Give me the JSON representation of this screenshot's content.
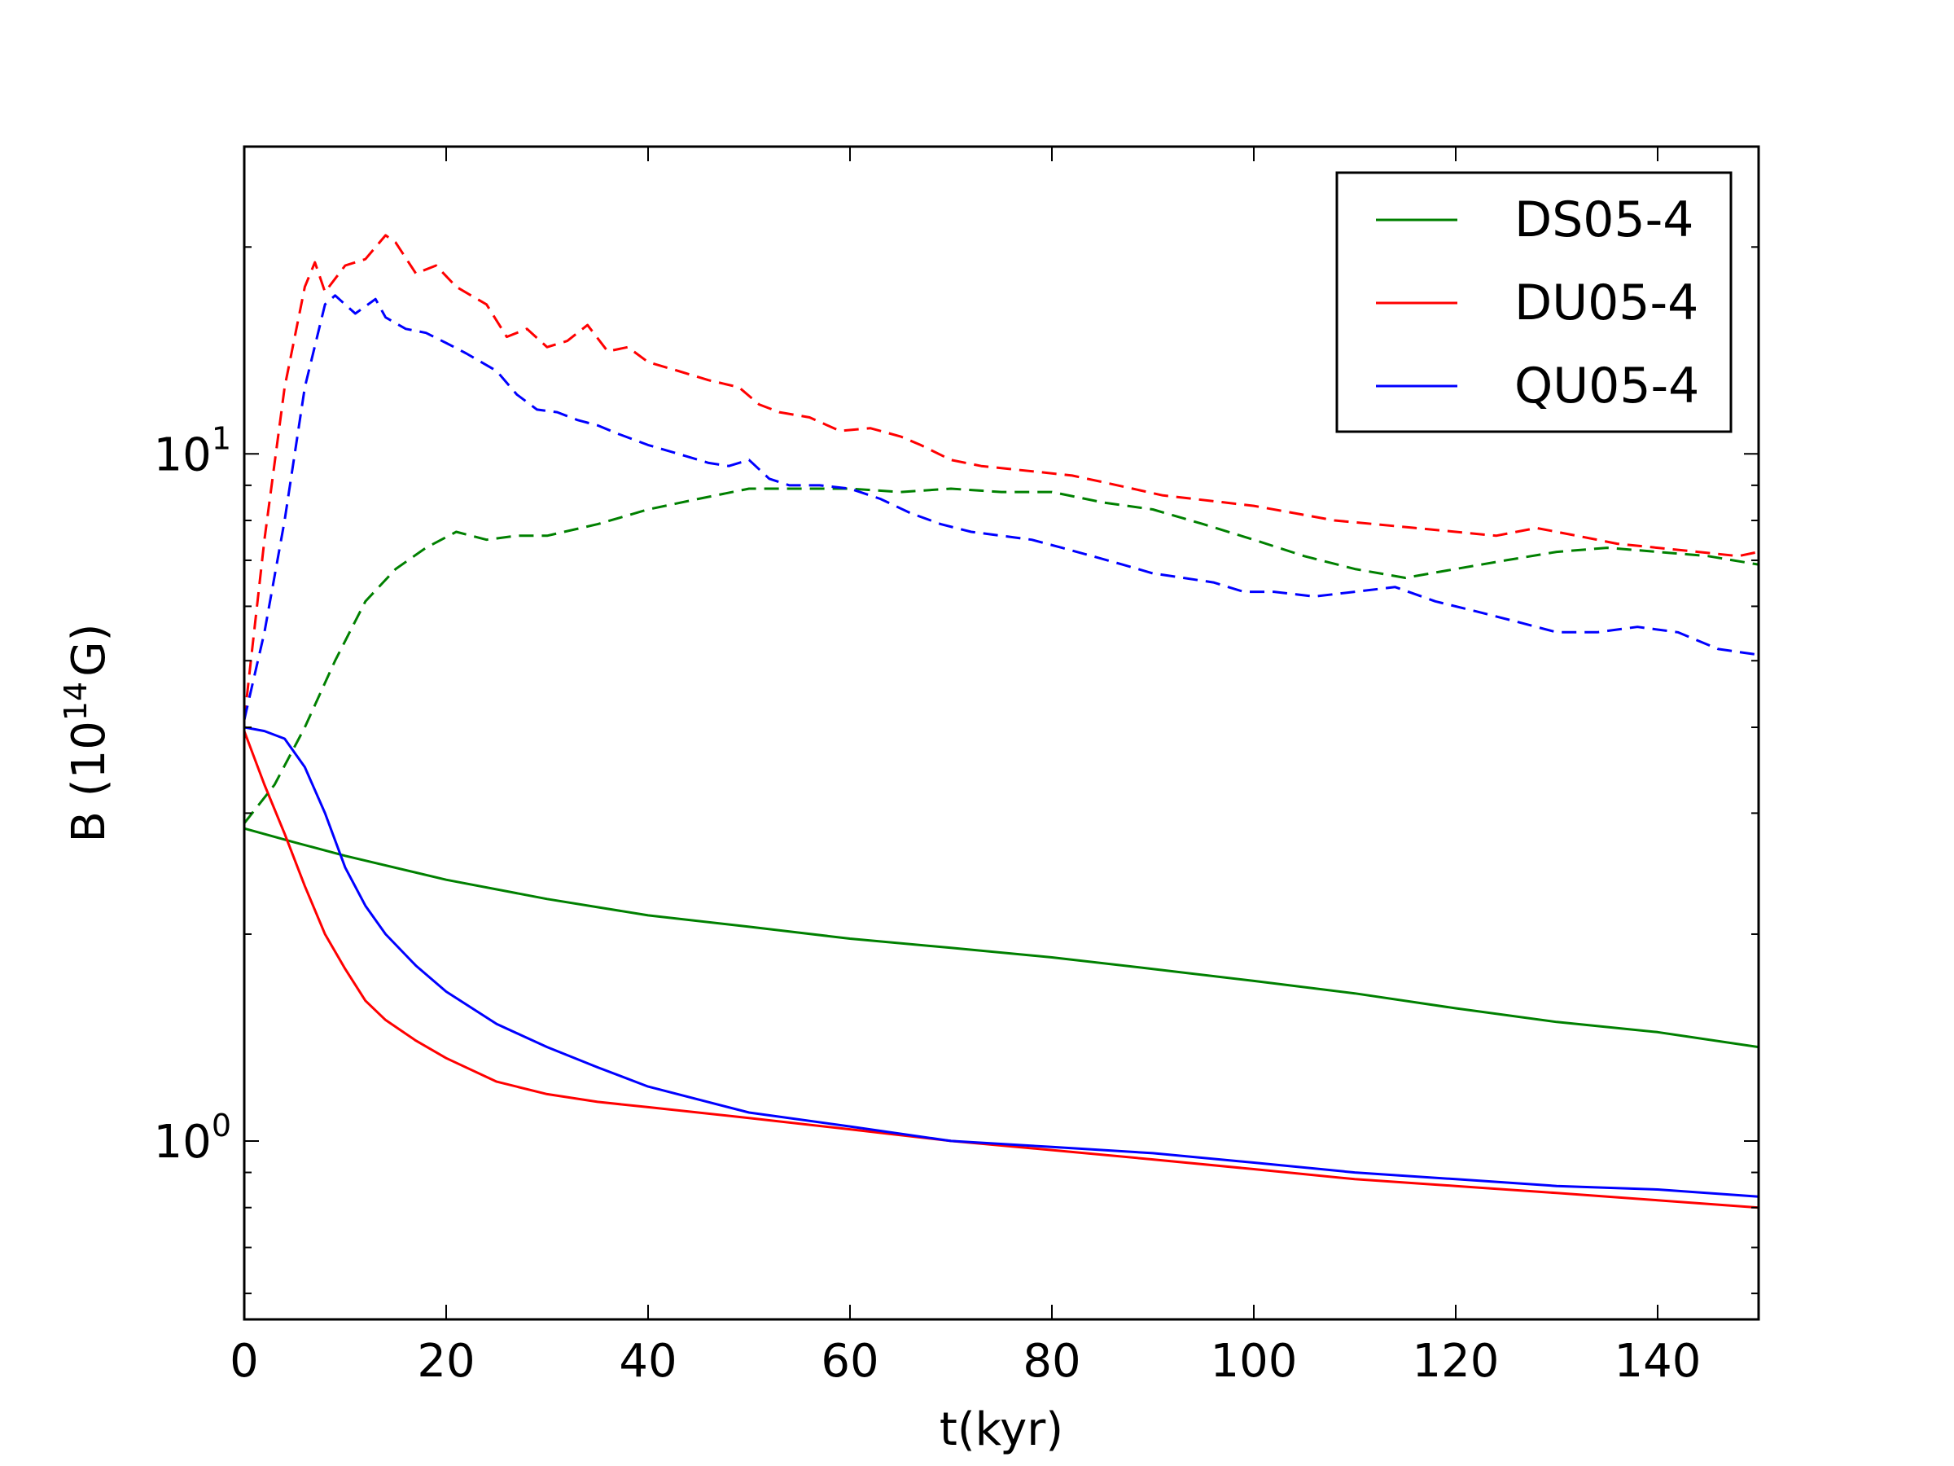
{
  "chart_data": {
    "type": "line",
    "xlabel": "t(kyr)",
    "ylabel": {
      "prefix": "B (10",
      "exp": "14",
      "suffix": "G)"
    },
    "xlim": [
      0,
      150
    ],
    "ylim": [
      0.55,
      28
    ],
    "yscale": "log",
    "x_ticks": [
      0,
      20,
      40,
      60,
      80,
      100,
      120,
      140
    ],
    "x_tick_labels": [
      "0",
      "20",
      "40",
      "60",
      "80",
      "100",
      "120",
      "140"
    ],
    "y_major_ticks": [
      {
        "value": 1,
        "base": "10",
        "exp": "0"
      },
      {
        "value": 10,
        "base": "10",
        "exp": "1"
      }
    ],
    "y_minor_ticks": [
      0.6,
      0.7,
      0.8,
      0.9,
      2,
      3,
      4,
      5,
      6,
      7,
      8,
      9,
      20
    ],
    "grid": false,
    "legend_position": "top-right",
    "legend": [
      {
        "label": "DS05-4",
        "color": "#008000"
      },
      {
        "label": "DU05-4",
        "color": "#ff0000"
      },
      {
        "label": "QU05-4",
        "color": "#0000ff"
      }
    ],
    "series": [
      {
        "color": "#008000",
        "style": "solid",
        "x": [
          0,
          5,
          10,
          20,
          30,
          40,
          50,
          60,
          70,
          80,
          90,
          100,
          110,
          120,
          130,
          140,
          150
        ],
        "y": [
          2.85,
          2.72,
          2.6,
          2.4,
          2.25,
          2.13,
          2.05,
          1.97,
          1.91,
          1.85,
          1.78,
          1.71,
          1.64,
          1.56,
          1.49,
          1.44,
          1.37
        ]
      },
      {
        "color": "#ff0000",
        "style": "solid",
        "x": [
          0,
          2,
          4,
          6,
          8,
          10,
          12,
          14,
          17,
          20,
          25,
          30,
          35,
          40,
          50,
          60,
          70,
          80,
          90,
          100,
          110,
          120,
          130,
          140,
          150
        ],
        "y": [
          3.95,
          3.3,
          2.8,
          2.35,
          2.0,
          1.78,
          1.6,
          1.5,
          1.4,
          1.32,
          1.22,
          1.17,
          1.14,
          1.12,
          1.08,
          1.04,
          1.0,
          0.97,
          0.94,
          0.91,
          0.88,
          0.86,
          0.84,
          0.82,
          0.8
        ]
      },
      {
        "color": "#0000ff",
        "style": "solid",
        "x": [
          0,
          2,
          4,
          6,
          8,
          10,
          12,
          14,
          17,
          20,
          25,
          30,
          35,
          40,
          50,
          60,
          70,
          80,
          90,
          100,
          110,
          120,
          130,
          140,
          150
        ],
        "y": [
          4.0,
          3.95,
          3.85,
          3.5,
          3.0,
          2.5,
          2.2,
          2.0,
          1.8,
          1.65,
          1.48,
          1.37,
          1.28,
          1.2,
          1.1,
          1.05,
          1.0,
          0.98,
          0.96,
          0.93,
          0.9,
          0.88,
          0.86,
          0.85,
          0.83
        ]
      },
      {
        "color": "#008000",
        "style": "dashed",
        "x": [
          0,
          3,
          6,
          9,
          12,
          15,
          18,
          21,
          24,
          27,
          30,
          35,
          40,
          45,
          50,
          55,
          60,
          65,
          70,
          75,
          80,
          85,
          90,
          95,
          100,
          105,
          110,
          115,
          120,
          125,
          130,
          135,
          140,
          145,
          150
        ],
        "y": [
          2.9,
          3.3,
          4.0,
          5.0,
          6.1,
          6.8,
          7.3,
          7.7,
          7.5,
          7.6,
          7.6,
          7.9,
          8.3,
          8.6,
          8.9,
          8.9,
          8.9,
          8.8,
          8.9,
          8.8,
          8.8,
          8.5,
          8.3,
          7.9,
          7.5,
          7.1,
          6.8,
          6.6,
          6.8,
          7.0,
          7.2,
          7.3,
          7.2,
          7.1,
          6.9
        ]
      },
      {
        "color": "#ff0000",
        "style": "dashed",
        "x": [
          0,
          2,
          4,
          6,
          7,
          8,
          10,
          12,
          14,
          15,
          17,
          19,
          21,
          24,
          26,
          28,
          30,
          32,
          34,
          36,
          38,
          40,
          43,
          46,
          49,
          51,
          53,
          56,
          59,
          62,
          65,
          67,
          70,
          73,
          76,
          79,
          82,
          85,
          88,
          91,
          94,
          97,
          100,
          104,
          108,
          112,
          116,
          120,
          124,
          128,
          132,
          136,
          140,
          144,
          148,
          150
        ],
        "y": [
          4.1,
          7.5,
          12.5,
          17.5,
          19.0,
          17.2,
          18.8,
          19.2,
          20.8,
          20.3,
          18.3,
          18.8,
          17.5,
          16.5,
          14.8,
          15.2,
          14.3,
          14.6,
          15.4,
          14.1,
          14.3,
          13.6,
          13.2,
          12.8,
          12.5,
          11.8,
          11.5,
          11.3,
          10.8,
          10.9,
          10.6,
          10.3,
          9.8,
          9.6,
          9.5,
          9.4,
          9.3,
          9.1,
          8.9,
          8.7,
          8.6,
          8.5,
          8.4,
          8.2,
          8.0,
          7.9,
          7.8,
          7.7,
          7.6,
          7.8,
          7.6,
          7.4,
          7.3,
          7.2,
          7.1,
          7.2
        ]
      },
      {
        "color": "#0000ff",
        "style": "dashed",
        "x": [
          0,
          2,
          4,
          6,
          8,
          9,
          11,
          13,
          14,
          16,
          18,
          20,
          22,
          25,
          27,
          29,
          31,
          33,
          35,
          37,
          40,
          43,
          46,
          48,
          50,
          52,
          54,
          57,
          60,
          63,
          66,
          69,
          72,
          75,
          78,
          81,
          84,
          87,
          90,
          93,
          96,
          99,
          102,
          106,
          110,
          114,
          118,
          122,
          126,
          130,
          134,
          138,
          142,
          146,
          150
        ],
        "y": [
          4.1,
          5.5,
          8.0,
          12.5,
          16.5,
          17.0,
          16.0,
          16.8,
          15.8,
          15.2,
          15.0,
          14.5,
          14.0,
          13.2,
          12.2,
          11.6,
          11.5,
          11.2,
          11.0,
          10.7,
          10.3,
          10.0,
          9.7,
          9.6,
          9.8,
          9.2,
          9.0,
          9.0,
          8.9,
          8.6,
          8.2,
          7.9,
          7.7,
          7.6,
          7.5,
          7.3,
          7.1,
          6.9,
          6.7,
          6.6,
          6.5,
          6.3,
          6.3,
          6.2,
          6.3,
          6.4,
          6.1,
          5.9,
          5.7,
          5.5,
          5.5,
          5.6,
          5.5,
          5.2,
          5.1
        ]
      }
    ]
  }
}
